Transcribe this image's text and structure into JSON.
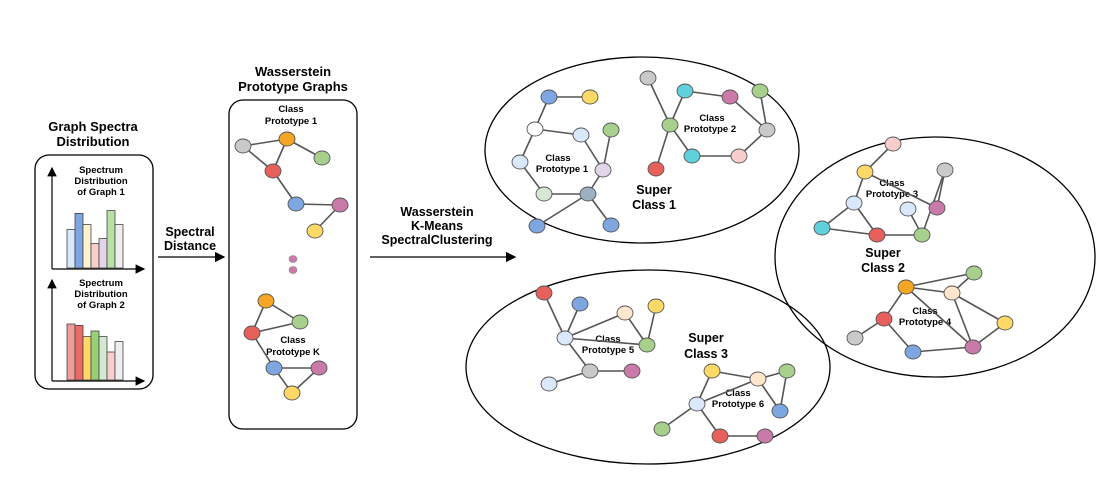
{
  "left_panel": {
    "title": [
      "Graph Spectra",
      "Distribution"
    ],
    "chart1_label": [
      "Spectrum",
      "Distribution",
      "of Graph 1"
    ],
    "chart2_label": [
      "Spectrum",
      "Distribution",
      "of Graph 2"
    ]
  },
  "arrow1_label": [
    "Spectral",
    "Distance"
  ],
  "middle_panel": {
    "title": [
      "Wasserstein",
      "Prototype Graphs"
    ],
    "proto1_label": [
      "Class",
      "Prototype 1"
    ],
    "protoK_label": [
      "Class",
      "Prototype K"
    ]
  },
  "arrow2_label": [
    "Wasserstein",
    "K-Means",
    "SpectralClustering"
  ],
  "super_classes": {
    "sc1": [
      "Super",
      "Class 1"
    ],
    "sc2": [
      "Super",
      "Class 2"
    ],
    "sc3": [
      "Super",
      "Class 3"
    ]
  },
  "prototypes": {
    "p1": [
      "Class",
      "Prototype 1"
    ],
    "p2": [
      "Class",
      "Prototype 2"
    ],
    "p3": [
      "Class",
      "Prototype 3"
    ],
    "p4": [
      "Class",
      "Prototype 4"
    ],
    "p5": [
      "Class",
      "Prototype 5"
    ],
    "p6": [
      "Class",
      "Prototype 6"
    ]
  },
  "colors": {
    "red": "#e8605c",
    "orange": "#f5a623",
    "green": "#a8d08d",
    "gray": "#c9c9c9",
    "blue": "#7ea6e0",
    "purple": "#c97aa8",
    "yellow": "#ffd966",
    "cyan": "#5fd0dc",
    "lightblue": "#dae8fc",
    "pink": "#f8cecc",
    "lightorange": "#ffe6cc",
    "darkgray": "#a9b0b8",
    "lavender": "#e1d5e7",
    "lightgreen": "#d5e8d4",
    "white": "#ffffff",
    "slate": "#9cb0c4"
  },
  "bar_colors_1": [
    "#dae8fc",
    "#7ea6e0",
    "#fff2cc",
    "#f8cecc",
    "#e1d5e7",
    "#b9e0a5",
    "#eeeeee"
  ],
  "bar_values_1": [
    0.55,
    0.78,
    0.62,
    0.35,
    0.42,
    0.82,
    0.62
  ],
  "bar_colors_2": [
    "#f19c99",
    "#ea6b66",
    "#ffd966",
    "#97d077",
    "#d5e8d4",
    "#f8cecc",
    "#eeeeee"
  ],
  "bar_values_2": [
    0.8,
    0.78,
    0.62,
    0.7,
    0.62,
    0.4,
    0.55
  ]
}
